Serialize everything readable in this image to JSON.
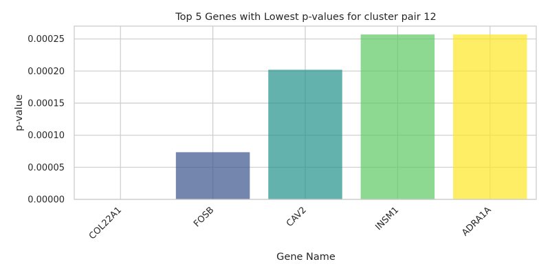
{
  "chart_data": {
    "type": "bar",
    "title": "Top 5 Genes with Lowest p-values for cluster pair 12",
    "xlabel": "Gene Name",
    "ylabel": "p-value",
    "categories": [
      "COL22A1",
      "FOSB",
      "CAV2",
      "INSM1",
      "ADRA1A"
    ],
    "values": [
      0.0,
      7.35e-05,
      0.000202,
      0.000257,
      0.000257
    ],
    "ylim": [
      0,
      0.00027
    ],
    "yticks": [
      "0.00000",
      "0.00005",
      "0.00010",
      "0.00015",
      "0.00020",
      "0.00025"
    ],
    "ytick_values": [
      0,
      5e-05,
      0.0001,
      0.00015,
      0.0002,
      0.00025
    ],
    "colors": [
      "#440154",
      "#3b528b",
      "#21918c",
      "#5ec962",
      "#fde725"
    ],
    "bar_opacity": 0.7,
    "grid": true,
    "legend": "none"
  }
}
